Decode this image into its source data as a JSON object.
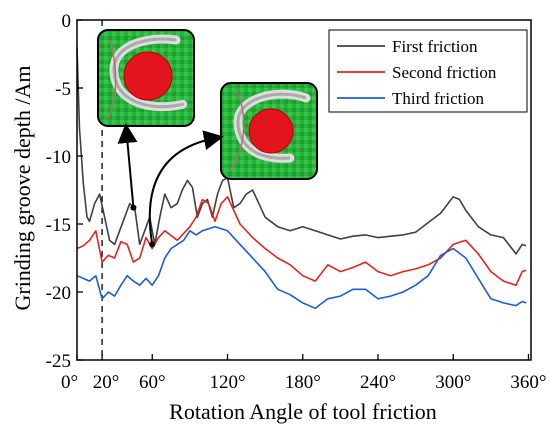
{
  "chart_data": {
    "type": "line",
    "title": "",
    "xlabel": "Rotation Angle of tool friction",
    "ylabel": "Grinding groove depth /Am",
    "xlim": [
      0,
      362
    ],
    "ylim": [
      -25,
      0
    ],
    "x_ticks": [
      0,
      20,
      60,
      120,
      180,
      240,
      300,
      360
    ],
    "x_tick_labels": [
      "0°",
      "20°",
      "60°",
      "120°",
      "180°",
      "240°",
      "300°",
      "360°"
    ],
    "y_ticks": [
      0,
      -5,
      -10,
      -15,
      -20,
      -25
    ],
    "y_tick_labels": [
      "0",
      "-5",
      "-10",
      "-15",
      "-20",
      "-25"
    ],
    "grid": false,
    "legend_position": "top-right",
    "reference_line_x": 20,
    "insets": [
      {
        "pointer_x": 45,
        "pointer_y": -13.8
      },
      {
        "pointer_x": 60,
        "pointer_y": -16.5
      }
    ],
    "series": [
      {
        "name": "First friction",
        "color": "#404040",
        "x": [
          0,
          2,
          5,
          8,
          10,
          14,
          18,
          22,
          26,
          30,
          34,
          38,
          42,
          46,
          50,
          54,
          58,
          62,
          66,
          70,
          75,
          80,
          84,
          88,
          92,
          96,
          100,
          104,
          108,
          112,
          116,
          120,
          125,
          130,
          135,
          140,
          145,
          150,
          160,
          170,
          180,
          190,
          200,
          210,
          220,
          230,
          240,
          250,
          260,
          270,
          280,
          290,
          300,
          305,
          310,
          320,
          330,
          340,
          350,
          355,
          358
        ],
        "y": [
          -2,
          -8,
          -12,
          -14.5,
          -14.8,
          -13.5,
          -12.8,
          -14.5,
          -16.2,
          -16.5,
          -15.5,
          -14.5,
          -13.5,
          -13.8,
          -16.5,
          -15.5,
          -14.5,
          -16.5,
          -14.5,
          -12.8,
          -13.8,
          -13.5,
          -12.5,
          -11.8,
          -12.3,
          -14.5,
          -13.5,
          -13.2,
          -14.5,
          -12.8,
          -11.8,
          -11.6,
          -13.8,
          -13.5,
          -12.8,
          -12.5,
          -13.5,
          -14.5,
          -15.2,
          -15.5,
          -15.2,
          -15.5,
          -15.8,
          -16.1,
          -15.9,
          -15.8,
          -16.0,
          -15.9,
          -15.8,
          -15.6,
          -14.9,
          -14.2,
          -13.0,
          -13.2,
          -14.0,
          -15.2,
          -15.8,
          -16.0,
          -17.2,
          -16.5,
          -16.6
        ]
      },
      {
        "name": "Second friction",
        "color": "#e8231b",
        "x": [
          0,
          5,
          10,
          15,
          20,
          25,
          30,
          35,
          40,
          45,
          50,
          55,
          60,
          65,
          70,
          80,
          90,
          95,
          100,
          105,
          110,
          115,
          120,
          130,
          140,
          150,
          160,
          170,
          180,
          190,
          200,
          210,
          220,
          230,
          240,
          250,
          260,
          270,
          280,
          290,
          300,
          310,
          320,
          330,
          340,
          350,
          355,
          358
        ],
        "y": [
          -16.8,
          -16.6,
          -16.2,
          -15.5,
          -17.8,
          -17.3,
          -17.5,
          -16.3,
          -16.5,
          -17.8,
          -17.5,
          -16.0,
          -16.8,
          -16.0,
          -15.5,
          -16.2,
          -15.2,
          -14.5,
          -13.2,
          -13.5,
          -14.8,
          -13.5,
          -13.0,
          -15.0,
          -16.0,
          -16.8,
          -17.5,
          -18.0,
          -18.8,
          -19.2,
          -18.0,
          -18.5,
          -18.2,
          -17.8,
          -18.5,
          -18.8,
          -18.5,
          -18.3,
          -18.0,
          -17.5,
          -16.5,
          -16.2,
          -17.2,
          -18.5,
          -19.2,
          -19.5,
          -18.5,
          -18.4
        ]
      },
      {
        "name": "Third friction",
        "color": "#1a5fd6",
        "x": [
          0,
          5,
          10,
          15,
          20,
          25,
          30,
          35,
          40,
          45,
          50,
          55,
          60,
          65,
          70,
          75,
          80,
          85,
          90,
          95,
          100,
          110,
          120,
          130,
          140,
          150,
          160,
          170,
          180,
          190,
          200,
          210,
          220,
          230,
          240,
          250,
          260,
          270,
          280,
          290,
          300,
          310,
          320,
          330,
          340,
          350,
          355,
          358
        ],
        "y": [
          -18.8,
          -19.0,
          -19.2,
          -18.8,
          -20.5,
          -20.0,
          -20.3,
          -19.5,
          -18.8,
          -19.2,
          -19.5,
          -19.0,
          -19.5,
          -18.8,
          -17.5,
          -16.8,
          -16.5,
          -16.2,
          -15.5,
          -15.8,
          -15.5,
          -15.2,
          -15.5,
          -16.5,
          -17.5,
          -18.5,
          -19.8,
          -20.2,
          -20.8,
          -21.2,
          -20.5,
          -20.3,
          -19.8,
          -19.8,
          -20.5,
          -20.3,
          -20.0,
          -19.5,
          -18.8,
          -17.3,
          -16.8,
          -17.5,
          -19.0,
          -20.5,
          -20.8,
          -21.0,
          -20.7,
          -20.8
        ]
      }
    ]
  }
}
